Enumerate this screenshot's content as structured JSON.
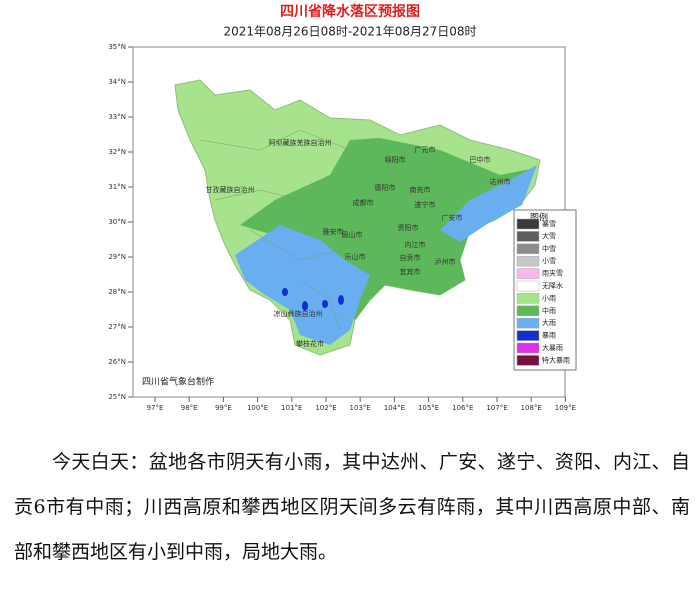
{
  "map": {
    "title": "四川省降水落区预报图",
    "subtitle": "2021年08月26日08时-2021年08月27日08时",
    "lat_labels": [
      "35°N",
      "34°N",
      "33°N",
      "32°N",
      "31°N",
      "30°N",
      "29°N",
      "28°N",
      "27°N",
      "26°N",
      "25°N"
    ],
    "lon_labels": [
      "97°E",
      "98°E",
      "99°E",
      "100°E",
      "101°E",
      "102°E",
      "103°E",
      "104°E",
      "105°E",
      "106°E",
      "107°E",
      "108°E",
      "109°E"
    ],
    "legend": {
      "title": "图例",
      "items": [
        "暴雪",
        "大雪",
        "中雪",
        "小雪",
        "雨夹雪",
        "无降水",
        "小雨",
        "中雨",
        "大雨",
        "暴雨",
        "大暴雨",
        "特大暴雨"
      ],
      "colors": [
        "#3a3a3a",
        "#5e5e5e",
        "#8c8c8c",
        "#c8c8c8",
        "#f6b8ee",
        "#ffffff",
        "#a6e38c",
        "#5cb85a",
        "#6aaef2",
        "#1030d0",
        "#e030e8",
        "#7a1040"
      ]
    },
    "cities": [
      "阿坝藏族羌族自治州",
      "甘孜藏族自治州",
      "广元市",
      "巴中市",
      "达州市",
      "绵阳市",
      "南充市",
      "德阳市",
      "成都市",
      "遂宁市",
      "广安市",
      "雅安市",
      "眉山市",
      "资阳市",
      "乐山市",
      "内江市",
      "自贡市",
      "宜宾市",
      "泸州市",
      "凉山彝族自治州",
      "攀枝花市"
    ],
    "credit": "四川省气象台制作"
  },
  "text": {
    "paragraph": "今天白天：盆地各市阴天有小雨，其中达州、广安、遂宁、资阳、内江、自贡6市有中雨；川西高原和攀西地区阴天间多云有阵雨，其中川西高原中部、南部和攀西地区有小到中雨，局地大雨。"
  }
}
